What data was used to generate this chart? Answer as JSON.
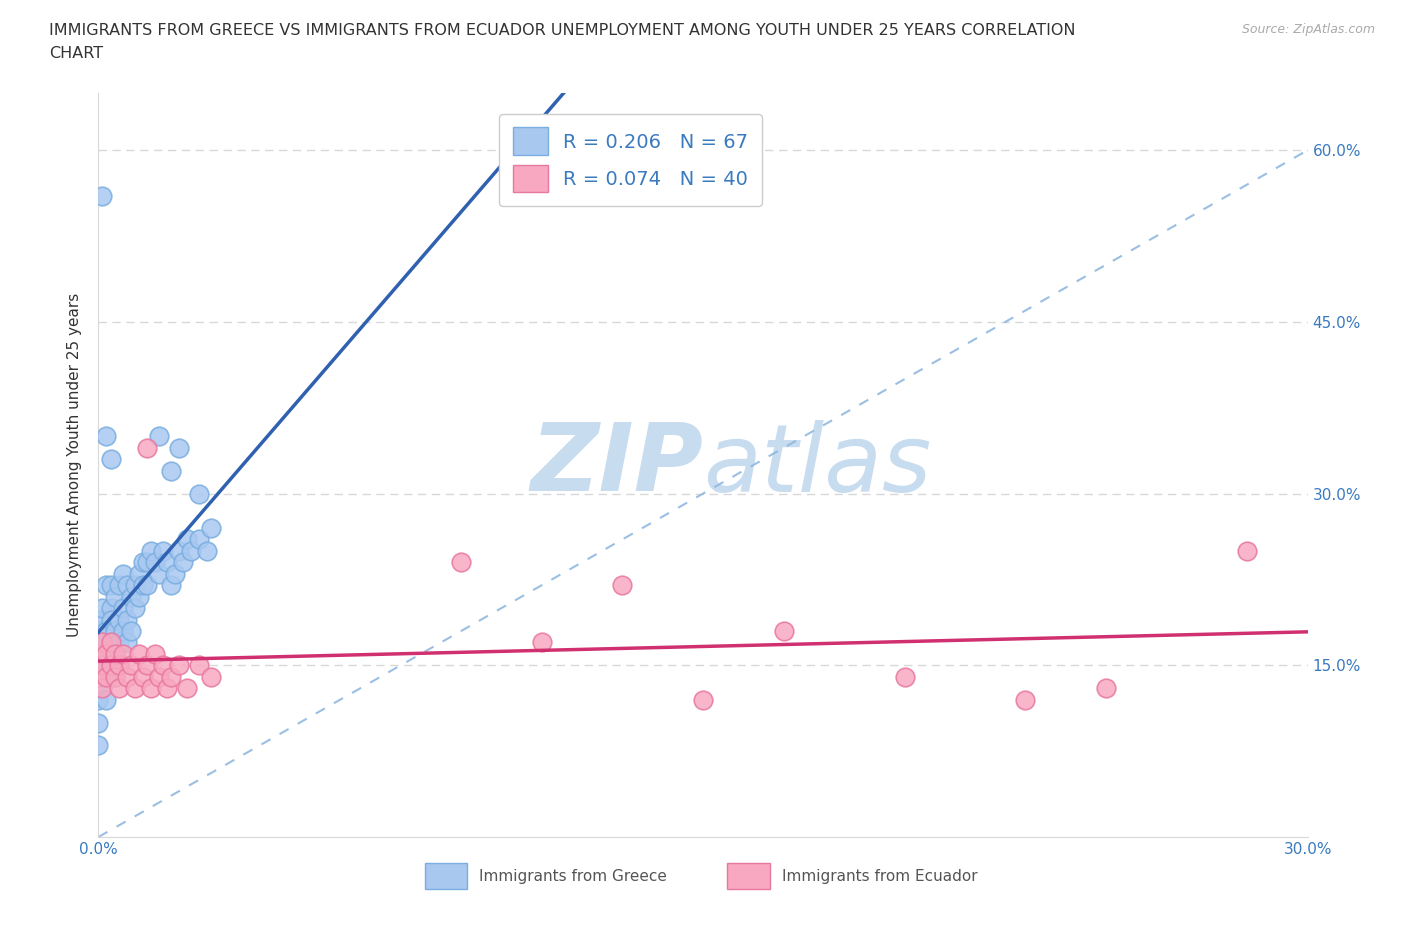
{
  "title_line1": "IMMIGRANTS FROM GREECE VS IMMIGRANTS FROM ECUADOR UNEMPLOYMENT AMONG YOUTH UNDER 25 YEARS CORRELATION",
  "title_line2": "CHART",
  "source": "Source: ZipAtlas.com",
  "ylabel": "Unemployment Among Youth under 25 years",
  "xlim": [
    0.0,
    0.3
  ],
  "ylim": [
    0.0,
    0.65
  ],
  "greece_color": "#a8c8f0",
  "greece_edge_color": "#7aaee0",
  "ecuador_color": "#f8a8c0",
  "ecuador_edge_color": "#e878a0",
  "greece_line_color": "#3060b0",
  "ecuador_line_color": "#d03070",
  "diag_line_color": "#90b8e0",
  "R_greece": 0.206,
  "N_greece": 67,
  "R_ecuador": 0.074,
  "N_ecuador": 40,
  "watermark_color": "#c8dcf0",
  "legend_text_color": "#3a7abf",
  "axis_tick_color": "#3a7abf",
  "grid_color": "#d8d8d8",
  "greece_x": [
    0.0,
    0.0,
    0.0,
    0.0,
    0.0,
    0.0,
    0.001,
    0.001,
    0.001,
    0.001,
    0.001,
    0.001,
    0.001,
    0.002,
    0.002,
    0.002,
    0.002,
    0.002,
    0.003,
    0.003,
    0.003,
    0.003,
    0.003,
    0.004,
    0.004,
    0.004,
    0.004,
    0.005,
    0.005,
    0.005,
    0.006,
    0.006,
    0.006,
    0.007,
    0.007,
    0.007,
    0.008,
    0.008,
    0.009,
    0.009,
    0.01,
    0.01,
    0.011,
    0.011,
    0.012,
    0.012,
    0.013,
    0.014,
    0.015,
    0.016,
    0.017,
    0.018,
    0.019,
    0.02,
    0.021,
    0.022,
    0.023,
    0.025,
    0.027,
    0.028,
    0.001,
    0.002,
    0.003,
    0.015,
    0.018,
    0.02,
    0.025
  ],
  "greece_y": [
    0.14,
    0.16,
    0.18,
    0.12,
    0.1,
    0.08,
    0.17,
    0.19,
    0.15,
    0.13,
    0.2,
    0.16,
    0.14,
    0.18,
    0.22,
    0.16,
    0.14,
    0.12,
    0.2,
    0.17,
    0.15,
    0.22,
    0.19,
    0.21,
    0.18,
    0.16,
    0.14,
    0.22,
    0.19,
    0.17,
    0.2,
    0.23,
    0.18,
    0.22,
    0.19,
    0.17,
    0.21,
    0.18,
    0.22,
    0.2,
    0.23,
    0.21,
    0.24,
    0.22,
    0.24,
    0.22,
    0.25,
    0.24,
    0.23,
    0.25,
    0.24,
    0.22,
    0.23,
    0.25,
    0.24,
    0.26,
    0.25,
    0.26,
    0.25,
    0.27,
    0.56,
    0.35,
    0.33,
    0.35,
    0.32,
    0.34,
    0.3
  ],
  "ecuador_x": [
    0.0,
    0.0,
    0.001,
    0.001,
    0.001,
    0.002,
    0.002,
    0.003,
    0.003,
    0.004,
    0.004,
    0.005,
    0.005,
    0.006,
    0.007,
    0.008,
    0.009,
    0.01,
    0.011,
    0.012,
    0.013,
    0.014,
    0.015,
    0.016,
    0.017,
    0.018,
    0.02,
    0.022,
    0.025,
    0.028,
    0.012,
    0.09,
    0.11,
    0.13,
    0.15,
    0.17,
    0.2,
    0.23,
    0.25,
    0.285
  ],
  "ecuador_y": [
    0.14,
    0.16,
    0.15,
    0.13,
    0.17,
    0.16,
    0.14,
    0.15,
    0.17,
    0.14,
    0.16,
    0.15,
    0.13,
    0.16,
    0.14,
    0.15,
    0.13,
    0.16,
    0.14,
    0.15,
    0.13,
    0.16,
    0.14,
    0.15,
    0.13,
    0.14,
    0.15,
    0.13,
    0.15,
    0.14,
    0.34,
    0.24,
    0.17,
    0.22,
    0.12,
    0.18,
    0.14,
    0.12,
    0.13,
    0.25
  ]
}
